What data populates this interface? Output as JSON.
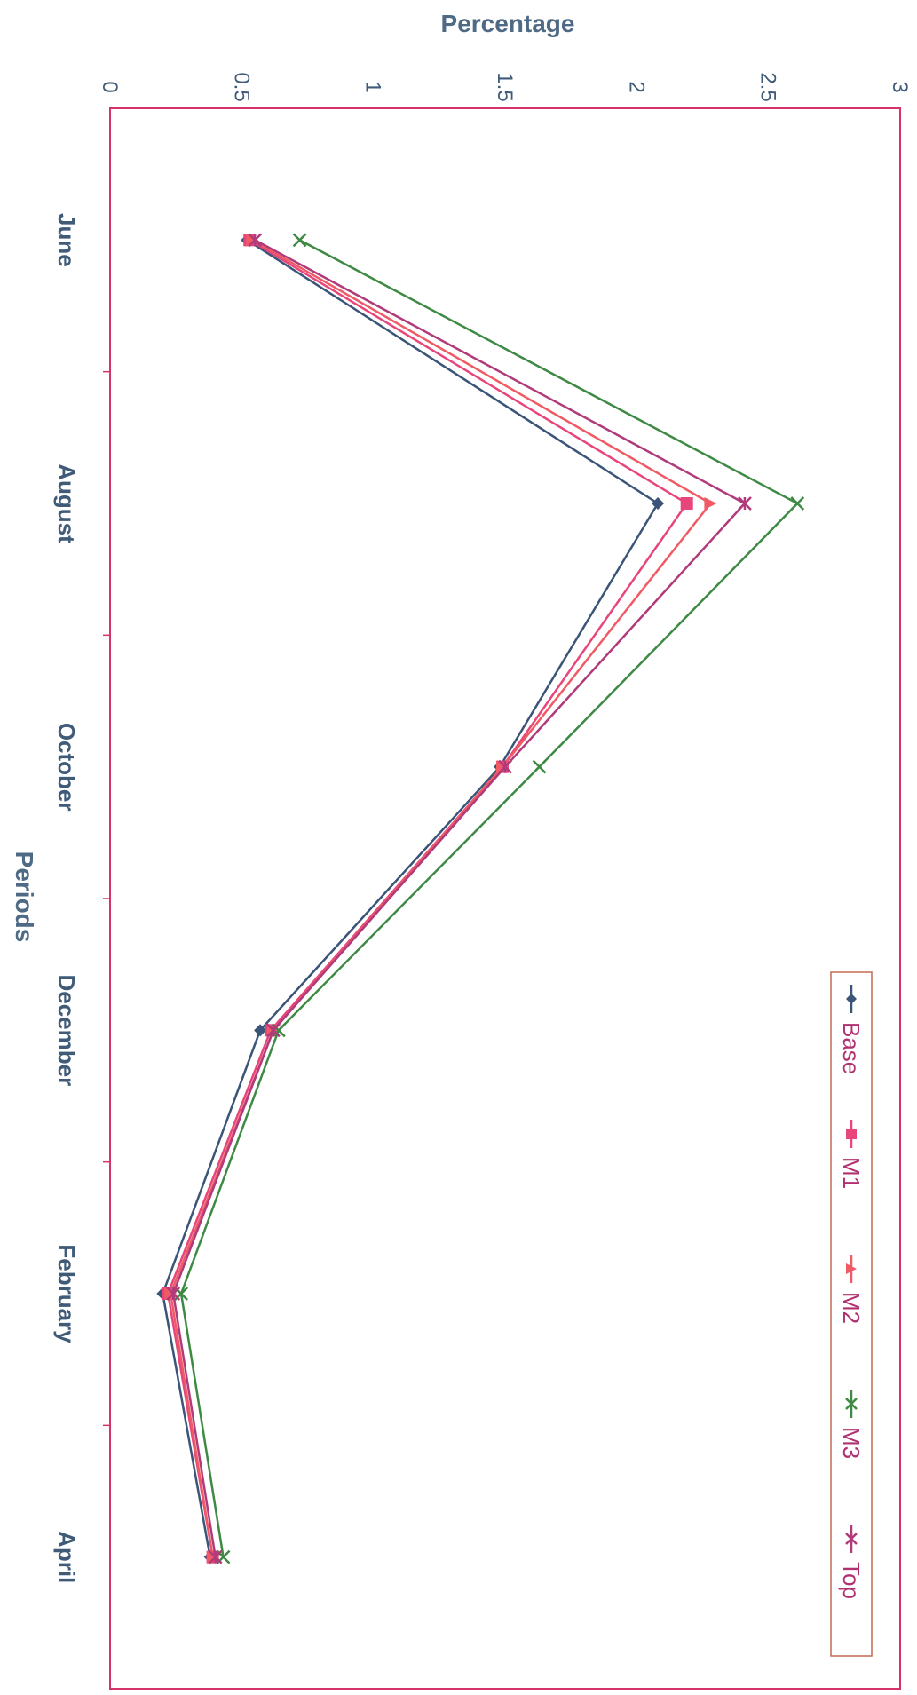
{
  "chart_data": {
    "type": "line",
    "orientation": "rotated-90",
    "xlabel": "Periods",
    "ylabel": "Percentage",
    "categories": [
      "June",
      "August",
      "October",
      "December",
      "February",
      "April"
    ],
    "ylim": [
      0,
      3
    ],
    "yticks": [
      "0",
      "0.5",
      "1",
      "1.5",
      "2",
      "2.5",
      "3"
    ],
    "legend_position": "right",
    "series": [
      {
        "name": "Base",
        "values": [
          0.52,
          2.08,
          1.48,
          0.57,
          0.2,
          0.38
        ],
        "color": "#3a5578",
        "marker": "diamond"
      },
      {
        "name": "M1",
        "values": [
          0.53,
          2.19,
          1.49,
          0.61,
          0.22,
          0.39
        ],
        "color": "#e8457a",
        "marker": "square"
      },
      {
        "name": "M2",
        "values": [
          0.54,
          2.28,
          1.49,
          0.62,
          0.23,
          0.39
        ],
        "color": "#f05a64",
        "marker": "triangle"
      },
      {
        "name": "M3",
        "values": [
          0.72,
          2.61,
          1.63,
          0.64,
          0.27,
          0.43
        ],
        "color": "#3e8a44",
        "marker": "x"
      },
      {
        "name": "Top",
        "values": [
          0.55,
          2.41,
          1.5,
          0.62,
          0.24,
          0.4
        ],
        "color": "#b13a7a",
        "marker": "star"
      }
    ]
  }
}
